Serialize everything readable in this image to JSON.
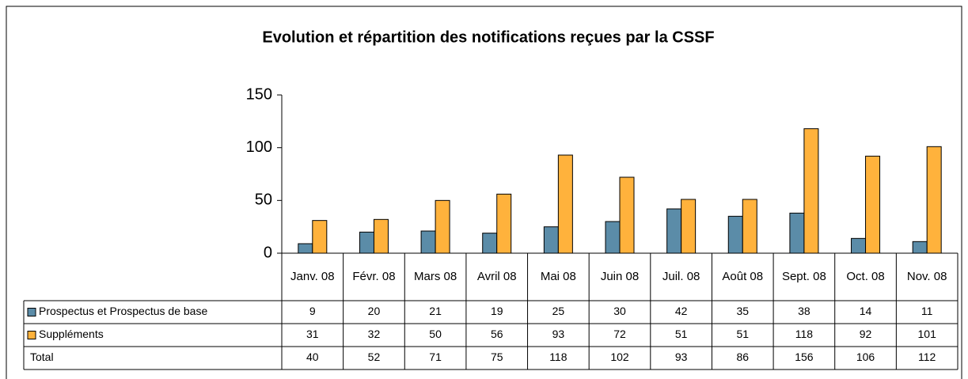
{
  "chart_data": {
    "type": "bar",
    "title": "Evolution et répartition des notifications reçues par la CSSF",
    "categories": [
      "Janv. 08",
      "Févr. 08",
      "Mars 08",
      "Avril 08",
      "Mai 08",
      "Juin 08",
      "Juil. 08",
      "Août 08",
      "Sept. 08",
      "Oct. 08",
      "Nov. 08"
    ],
    "series": [
      {
        "name": "Prospectus et Prospectus de base",
        "color": "#5b8ca8",
        "values": [
          9,
          20,
          21,
          19,
          25,
          30,
          42,
          35,
          38,
          14,
          11
        ]
      },
      {
        "name": "Suppléments",
        "color": "#ffb23c",
        "values": [
          31,
          32,
          50,
          56,
          93,
          72,
          51,
          51,
          118,
          92,
          101
        ]
      }
    ],
    "total": {
      "name": "Total",
      "values": [
        40,
        52,
        71,
        75,
        118,
        102,
        93,
        86,
        156,
        106,
        112
      ]
    },
    "ylim": [
      0,
      150
    ],
    "yticks": [
      0,
      50,
      100,
      150
    ],
    "grid": false
  }
}
